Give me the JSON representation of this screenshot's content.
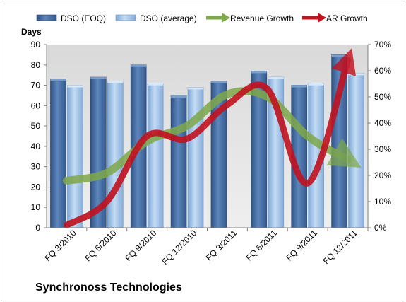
{
  "chart_data": {
    "type": "bar",
    "title": "Synchronoss Technologies",
    "categories": [
      "FQ 3/2010",
      "FQ 6/2010",
      "FQ 9/2010",
      "FQ 12/2010",
      "FQ 3/2011",
      "FQ 6/2011",
      "FQ 9/2011",
      "FQ 12/2011"
    ],
    "ylabel": "Days",
    "ylim": [
      0,
      90
    ],
    "yticks": [
      "0",
      "10",
      "20",
      "30",
      "40",
      "50",
      "60",
      "70",
      "80",
      "90"
    ],
    "y2lim": [
      0,
      70
    ],
    "y2ticks": [
      "0%",
      "10%",
      "20%",
      "30%",
      "40%",
      "50%",
      "60%",
      "70%"
    ],
    "series": [
      {
        "name": "DSO (EOQ)",
        "kind": "bar",
        "axis": "left",
        "values": [
          73,
          74,
          80,
          65,
          72,
          77,
          70,
          85
        ],
        "color": "#4a72a6"
      },
      {
        "name": "DSO (average)",
        "kind": "bar",
        "axis": "left",
        "values": [
          70,
          72,
          71,
          69,
          0,
          74,
          71,
          76
        ],
        "color": "#9fc0e4"
      },
      {
        "name": "Revenue Growth",
        "kind": "line",
        "axis": "right",
        "values": [
          18,
          21,
          33,
          39,
          51,
          50,
          35,
          26
        ],
        "color": "#7fa84a"
      },
      {
        "name": "AR Growth",
        "kind": "line",
        "axis": "right",
        "values": [
          1,
          10,
          35,
          34,
          47,
          53,
          17,
          64
        ],
        "color": "#c1121f"
      }
    ],
    "legend_position": "top",
    "grid": false
  }
}
